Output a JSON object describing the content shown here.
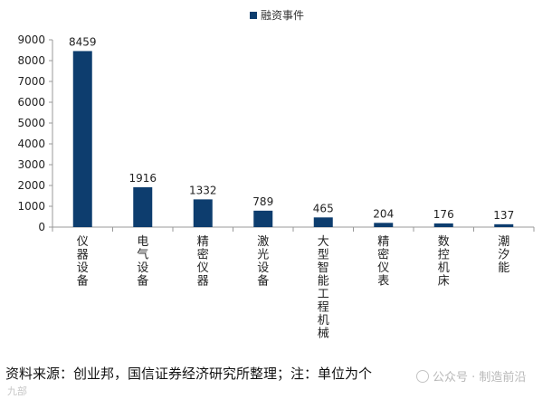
{
  "chart_data": {
    "type": "bar",
    "categories": [
      "仪器设备",
      "电气设备",
      "精密仪器",
      "激光设备",
      "大型智能工程机械",
      "精密仪表",
      "数控机床",
      "潮汐能"
    ],
    "values": [
      8459,
      1916,
      1332,
      789,
      465,
      204,
      176,
      137
    ],
    "series": [
      {
        "name": "融资事件",
        "values": [
          8459,
          1916,
          1332,
          789,
          465,
          204,
          176,
          137
        ]
      }
    ],
    "yticks": [
      "0",
      "1000",
      "2000",
      "3000",
      "4000",
      "5000",
      "6000",
      "7000",
      "8000",
      "9000"
    ],
    "ylim": [
      0,
      9000
    ],
    "title": "",
    "xlabel": "",
    "ylabel": "",
    "legend_position": "top"
  },
  "legend": {
    "label": "融资事件"
  },
  "colors": {
    "bar": "#0d3d6e",
    "axis": "#999999",
    "text": "#222222"
  },
  "footer": {
    "source": "资料来源：创业邦，国信证券经济研究所整理；注：单位为个",
    "watermark": "公众号 · 制造前沿",
    "corner_mark": "九部"
  }
}
